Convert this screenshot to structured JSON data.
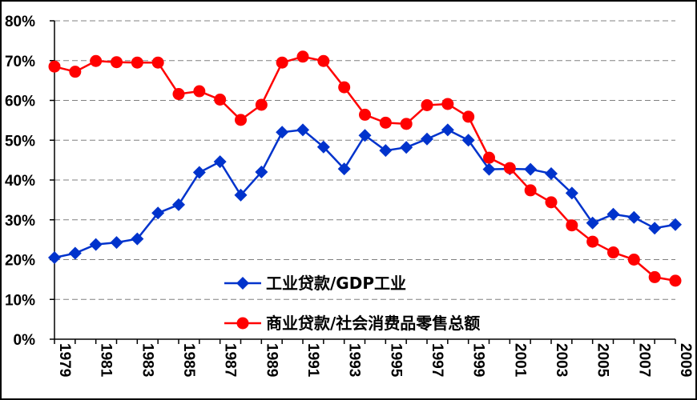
{
  "chart_data": {
    "type": "line",
    "title": "",
    "xlabel": "",
    "ylabel": "",
    "ylim": [
      0,
      80
    ],
    "y_ticks": [
      "0%",
      "10%",
      "20%",
      "30%",
      "40%",
      "50%",
      "60%",
      "70%",
      "80%"
    ],
    "x": [
      1979,
      1980,
      1981,
      1982,
      1983,
      1984,
      1985,
      1986,
      1987,
      1988,
      1989,
      1990,
      1991,
      1992,
      1993,
      1994,
      1995,
      1996,
      1997,
      1998,
      1999,
      2000,
      2001,
      2002,
      2003,
      2004,
      2005,
      2006,
      2007,
      2008,
      2009
    ],
    "x_tick_labels": [
      "1979",
      "1981",
      "1983",
      "1985",
      "1987",
      "1989",
      "1991",
      "1993",
      "1995",
      "1997",
      "1999",
      "2001",
      "2003",
      "2005",
      "2007",
      "2009"
    ],
    "grid": true,
    "legend_position": "bottom-center",
    "series": [
      {
        "name": "工业贷款/GDP工业",
        "color": "#0033cc",
        "marker": "diamond",
        "values": [
          20.5,
          21.6,
          23.8,
          24.3,
          25.2,
          31.7,
          33.8,
          41.9,
          44.6,
          36.2,
          42.0,
          52.0,
          52.6,
          48.3,
          42.8,
          51.2,
          47.4,
          48.2,
          50.3,
          52.6,
          50.0,
          42.7,
          42.8,
          42.7,
          41.6,
          36.7,
          29.2,
          31.4,
          30.6,
          27.9,
          28.8
        ]
      },
      {
        "name": "商业贷款/社会消费品零售总额",
        "color": "#ff0000",
        "marker": "circle",
        "values": [
          68.5,
          67.2,
          69.9,
          69.6,
          69.5,
          69.5,
          61.6,
          62.3,
          60.2,
          55.1,
          58.9,
          69.5,
          71.0,
          69.9,
          63.3,
          56.4,
          54.4,
          54.1,
          58.8,
          59.1,
          55.9,
          45.6,
          43.0,
          37.4,
          34.4,
          28.6,
          24.5,
          21.8,
          20.0,
          15.6,
          14.7
        ]
      }
    ]
  }
}
